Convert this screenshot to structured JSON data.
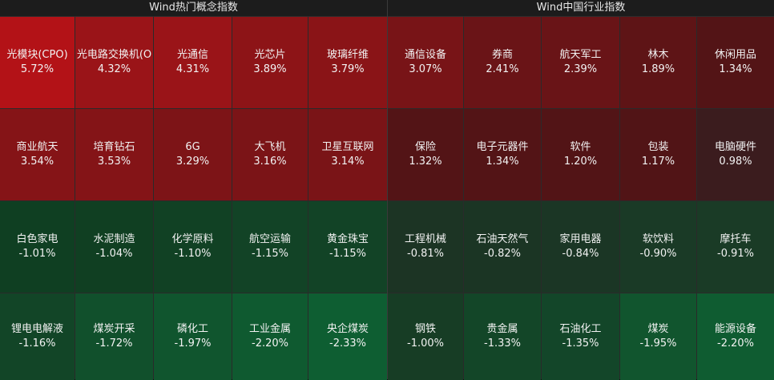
{
  "left": {
    "title": "Wind热门概念指数",
    "cells": [
      {
        "name": "光模块(CPO)",
        "value": "5.72%",
        "color": "#b31217"
      },
      {
        "name": "光电路交换机(O",
        "value": "4.32%",
        "color": "#9a1418"
      },
      {
        "name": "光通信",
        "value": "4.31%",
        "color": "#9a1418"
      },
      {
        "name": "光芯片",
        "value": "3.89%",
        "color": "#8d1417"
      },
      {
        "name": "玻璃纤维",
        "value": "3.79%",
        "color": "#8a1417"
      },
      {
        "name": "商业航天",
        "value": "3.54%",
        "color": "#851417"
      },
      {
        "name": "培育钻石",
        "value": "3.53%",
        "color": "#841417"
      },
      {
        "name": "6G",
        "value": "3.29%",
        "color": "#7d1417"
      },
      {
        "name": "大飞机",
        "value": "3.16%",
        "color": "#7b1417"
      },
      {
        "name": "卫星互联网",
        "value": "3.14%",
        "color": "#7a1417"
      },
      {
        "name": "白色家电",
        "value": "-1.01%",
        "color": "#0f3f22"
      },
      {
        "name": "水泥制造",
        "value": "-1.04%",
        "color": "#103f22"
      },
      {
        "name": "化学原料",
        "value": "-1.10%",
        "color": "#114124"
      },
      {
        "name": "航空运输",
        "value": "-1.15%",
        "color": "#124326"
      },
      {
        "name": "黄金珠宝",
        "value": "-1.15%",
        "color": "#124326"
      },
      {
        "name": "锂电电解液",
        "value": "-1.16%",
        "color": "#124527"
      },
      {
        "name": "煤炭开采",
        "value": "-1.72%",
        "color": "#11502c"
      },
      {
        "name": "磷化工",
        "value": "-1.97%",
        "color": "#10552e"
      },
      {
        "name": "工业金属",
        "value": "-2.20%",
        "color": "#0f5a30"
      },
      {
        "name": "央企煤炭",
        "value": "-2.33%",
        "color": "#0e5e32"
      }
    ]
  },
  "right": {
    "title": "Wind中国行业指数",
    "cells": [
      {
        "name": "通信设备",
        "value": "3.07%",
        "color": "#781417"
      },
      {
        "name": "券商",
        "value": "2.41%",
        "color": "#6a1417"
      },
      {
        "name": "航天军工",
        "value": "2.39%",
        "color": "#691417"
      },
      {
        "name": "林木",
        "value": "1.89%",
        "color": "#5e1416"
      },
      {
        "name": "休闲用品",
        "value": "1.34%",
        "color": "#531416"
      },
      {
        "name": "保险",
        "value": "1.32%",
        "color": "#531416"
      },
      {
        "name": "电子元器件",
        "value": "1.34%",
        "color": "#531416"
      },
      {
        "name": "软件",
        "value": "1.20%",
        "color": "#521416"
      },
      {
        "name": "包装",
        "value": "1.17%",
        "color": "#511416"
      },
      {
        "name": "电脑硬件",
        "value": "0.98%",
        "color": "#3b1c1e"
      },
      {
        "name": "工程机械",
        "value": "-0.81%",
        "color": "#1c3424"
      },
      {
        "name": "石油天然气",
        "value": "-0.82%",
        "color": "#1b3524"
      },
      {
        "name": "家用电器",
        "value": "-0.84%",
        "color": "#1b3625"
      },
      {
        "name": "软饮料",
        "value": "-0.90%",
        "color": "#1a3a26"
      },
      {
        "name": "摩托车",
        "value": "-0.91%",
        "color": "#1a3b26"
      },
      {
        "name": "钢铁",
        "value": "-1.00%",
        "color": "#173d25"
      },
      {
        "name": "贵金属",
        "value": "-1.33%",
        "color": "#134628"
      },
      {
        "name": "石油化工",
        "value": "-1.35%",
        "color": "#134629"
      },
      {
        "name": "煤炭",
        "value": "-1.95%",
        "color": "#11552e"
      },
      {
        "name": "能源设备",
        "value": "-2.20%",
        "color": "#0f5c31"
      }
    ]
  }
}
